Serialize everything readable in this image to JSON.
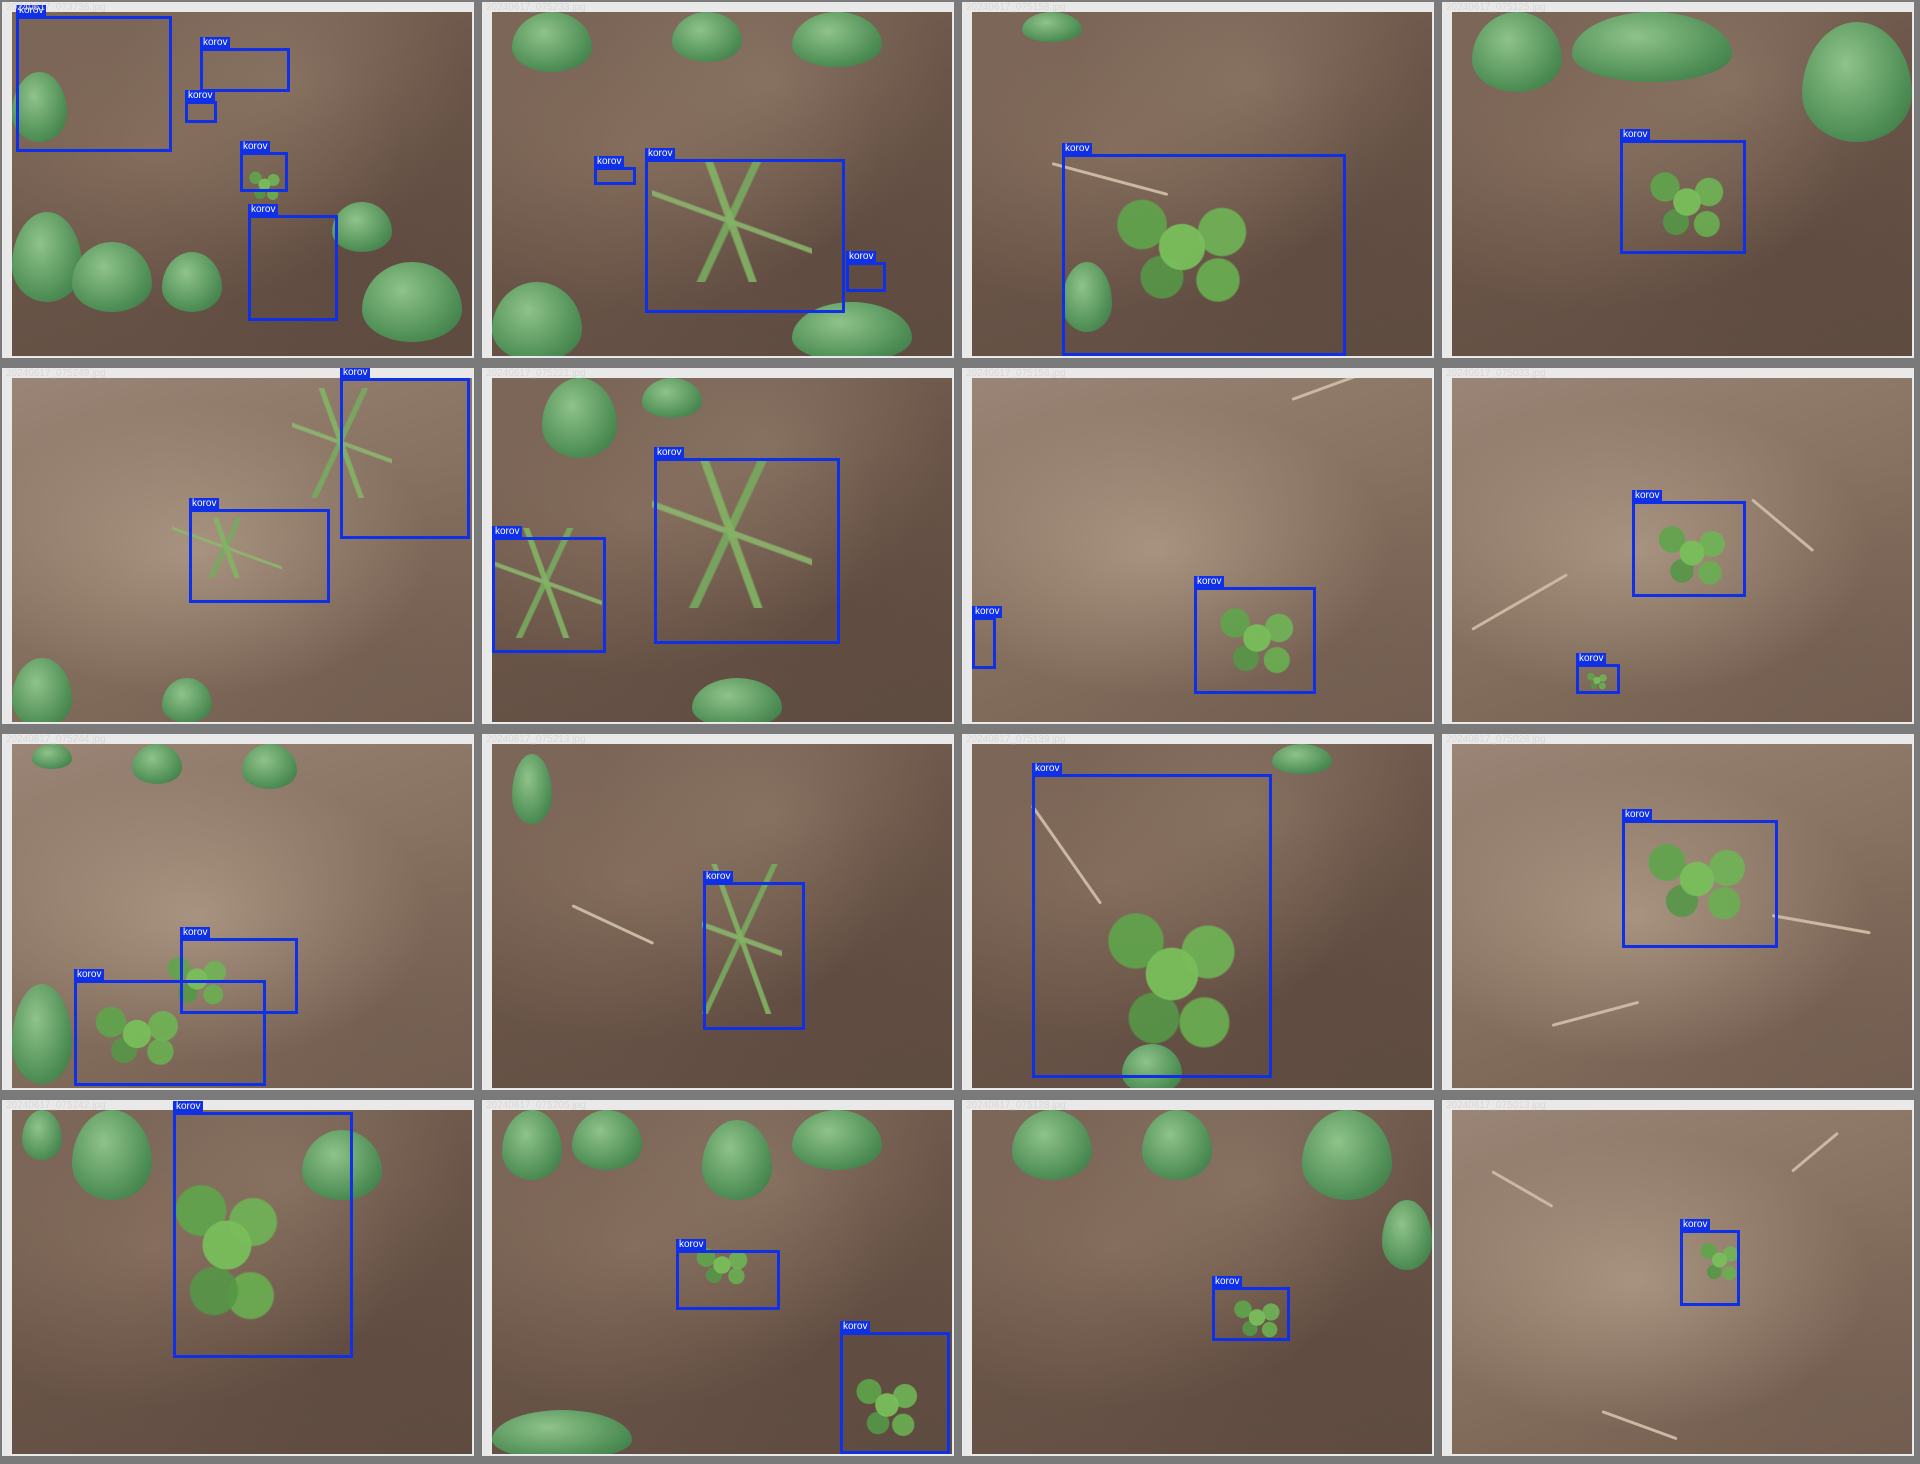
{
  "label_text": "korov",
  "colors": {
    "box": "#1030e8",
    "background": "#7a7a7a",
    "label_text": "#ffffff"
  },
  "tiles": [
    {
      "filename": "20240617_073736.jpg",
      "boxes": 5
    },
    {
      "filename": "20240617_075233.jpg",
      "boxes": 3
    },
    {
      "filename": "20240617_075158.jpg",
      "boxes": 1
    },
    {
      "filename": "20240617_075125.jpg",
      "boxes": 1
    },
    {
      "filename": "20240617_075249.jpg",
      "boxes": 2
    },
    {
      "filename": "20240617_075221.jpg",
      "boxes": 2
    },
    {
      "filename": "20240617_075156.jpg",
      "boxes": 2
    },
    {
      "filename": "20240617_075033.jpg",
      "boxes": 2
    },
    {
      "filename": "20240617_075244.jpg",
      "boxes": 2
    },
    {
      "filename": "20240617_075213.jpg",
      "boxes": 1
    },
    {
      "filename": "20240617_075139.jpg",
      "boxes": 1
    },
    {
      "filename": "20240617_075028.jpg",
      "boxes": 1
    },
    {
      "filename": "20240617_075242.jpg",
      "boxes": 1
    },
    {
      "filename": "20240617_075205.jpg",
      "boxes": 2
    },
    {
      "filename": "20240617_075128.jpg",
      "boxes": 1
    },
    {
      "filename": "20240617_075013.jpg",
      "boxes": 1
    }
  ]
}
